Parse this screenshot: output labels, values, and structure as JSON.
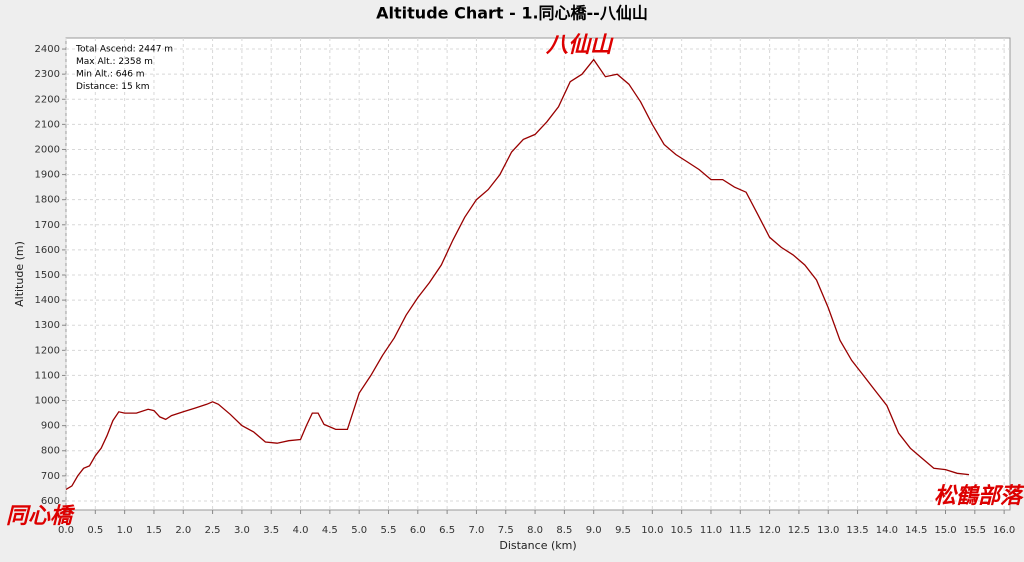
{
  "chart_data": {
    "type": "line",
    "title": "Altitude Chart - 1.同心橋--八仙山",
    "x_label": "Distance (km)",
    "y_label": "Altitude (m)",
    "stats": [
      "Total Ascend: 2447 m",
      "Max Alt.: 2358 m",
      "Min Alt.: 646 m",
      "Distance: 15 km"
    ],
    "annotations": [
      "八仙山",
      "同心橋",
      "松鶴部落"
    ],
    "color": "#990000",
    "grid": true,
    "x": [
      0,
      0.1,
      0.2,
      0.3,
      0.4,
      0.5,
      0.6,
      0.7,
      0.8,
      0.9,
      1.0,
      1.2,
      1.4,
      1.5,
      1.6,
      1.7,
      1.8,
      2.0,
      2.2,
      2.4,
      2.5,
      2.6,
      2.8,
      3.0,
      3.2,
      3.4,
      3.6,
      3.8,
      4.0,
      4.1,
      4.2,
      4.3,
      4.4,
      4.6,
      4.8,
      5.0,
      5.2,
      5.4,
      5.6,
      5.8,
      6.0,
      6.2,
      6.4,
      6.6,
      6.8,
      7.0,
      7.2,
      7.4,
      7.6,
      7.8,
      8.0,
      8.2,
      8.4,
      8.6,
      8.8,
      9.0,
      9.2,
      9.4,
      9.6,
      9.8,
      10.0,
      10.2,
      10.4,
      10.6,
      10.8,
      11.0,
      11.2,
      11.4,
      11.6,
      11.8,
      12.0,
      12.2,
      12.4,
      12.6,
      12.8,
      13.0,
      13.2,
      13.4,
      13.6,
      13.8,
      14.0,
      14.2,
      14.4,
      14.6,
      14.8,
      15.0,
      15.2,
      15.4
    ],
    "values": [
      646,
      660,
      700,
      730,
      740,
      780,
      810,
      860,
      920,
      955,
      950,
      950,
      965,
      960,
      935,
      925,
      940,
      955,
      970,
      985,
      995,
      985,
      945,
      900,
      875,
      835,
      830,
      840,
      845,
      900,
      950,
      950,
      905,
      885,
      885,
      1030,
      1100,
      1180,
      1250,
      1340,
      1410,
      1470,
      1540,
      1640,
      1730,
      1800,
      1840,
      1900,
      1990,
      2040,
      2060,
      2110,
      2170,
      2270,
      2300,
      2358,
      2290,
      2300,
      2260,
      2190,
      2100,
      2020,
      1980,
      1950,
      1920,
      1880,
      1880,
      1850,
      1830,
      1740,
      1650,
      1610,
      1580,
      1540,
      1480,
      1370,
      1240,
      1160,
      1100,
      1040,
      980,
      870,
      810,
      770,
      730,
      725,
      710,
      705
    ],
    "xlim": [
      0,
      16.1
    ],
    "ylim": [
      564,
      2444
    ],
    "xticks": [
      {
        "value": 0,
        "label": "0.0"
      },
      {
        "value": 0.5,
        "label": "0.5"
      },
      {
        "value": 1,
        "label": "1.0"
      },
      {
        "value": 1.5,
        "label": "1.5"
      },
      {
        "value": 2,
        "label": "2.0"
      },
      {
        "value": 2.5,
        "label": "2.5"
      },
      {
        "value": 3,
        "label": "3.0"
      },
      {
        "value": 3.5,
        "label": "3.5"
      },
      {
        "value": 4,
        "label": "4.0"
      },
      {
        "value": 4.5,
        "label": "4.5"
      },
      {
        "value": 5,
        "label": "5.0"
      },
      {
        "value": 5.5,
        "label": "5.5"
      },
      {
        "value": 6,
        "label": "6.0"
      },
      {
        "value": 6.5,
        "label": "6.5"
      },
      {
        "value": 7,
        "label": "7.0"
      },
      {
        "value": 7.5,
        "label": "7.5"
      },
      {
        "value": 8,
        "label": "8.0"
      },
      {
        "value": 8.5,
        "label": "8.5"
      },
      {
        "value": 9,
        "label": "9.0"
      },
      {
        "value": 9.5,
        "label": "9.5"
      },
      {
        "value": 10,
        "label": "10.0"
      },
      {
        "value": 10.5,
        "label": "10.5"
      },
      {
        "value": 11,
        "label": "11.0"
      },
      {
        "value": 11.5,
        "label": "11.5"
      },
      {
        "value": 12,
        "label": "12.0"
      },
      {
        "value": 12.5,
        "label": "12.5"
      },
      {
        "value": 13,
        "label": "13.0"
      },
      {
        "value": 13.5,
        "label": "13.5"
      },
      {
        "value": 14,
        "label": "14.0"
      },
      {
        "value": 14.5,
        "label": "14.5"
      },
      {
        "value": 15,
        "label": "15.0"
      },
      {
        "value": 15.5,
        "label": "15.5"
      },
      {
        "value": 16,
        "label": "16.0"
      }
    ],
    "yticks": [
      600,
      700,
      800,
      900,
      1000,
      1100,
      1200,
      1300,
      1400,
      1500,
      1600,
      1700,
      1800,
      1900,
      2000,
      2100,
      2200,
      2300,
      2400
    ]
  }
}
